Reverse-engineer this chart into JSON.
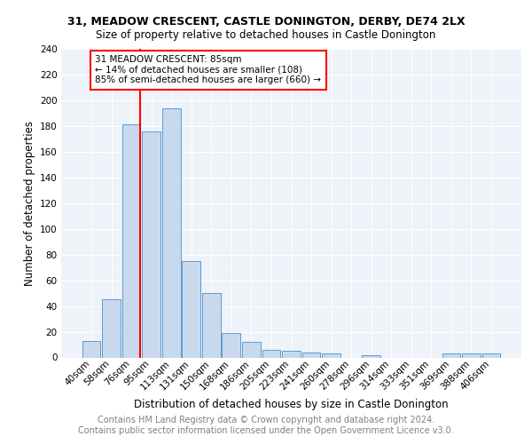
{
  "title1": "31, MEADOW CRESCENT, CASTLE DONINGTON, DERBY, DE74 2LX",
  "title2": "Size of property relative to detached houses in Castle Donington",
  "xlabel": "Distribution of detached houses by size in Castle Donington",
  "ylabel": "Number of detached properties",
  "footnote1": "Contains HM Land Registry data © Crown copyright and database right 2024.",
  "footnote2": "Contains public sector information licensed under the Open Government Licence v3.0.",
  "bar_labels": [
    "40sqm",
    "58sqm",
    "76sqm",
    "95sqm",
    "113sqm",
    "131sqm",
    "150sqm",
    "168sqm",
    "186sqm",
    "205sqm",
    "223sqm",
    "241sqm",
    "260sqm",
    "278sqm",
    "296sqm",
    "314sqm",
    "333sqm",
    "351sqm",
    "369sqm",
    "388sqm",
    "406sqm"
  ],
  "bar_values": [
    13,
    45,
    181,
    176,
    194,
    75,
    50,
    19,
    12,
    6,
    5,
    4,
    3,
    0,
    2,
    0,
    0,
    0,
    3,
    3,
    3
  ],
  "bar_color": "#c9d9ed",
  "bar_edge_color": "#5b9bd5",
  "annotation_text": "31 MEADOW CRESCENT: 85sqm\n← 14% of detached houses are smaller (108)\n85% of semi-detached houses are larger (660) →",
  "annotation_box_color": "white",
  "annotation_border_color": "red",
  "ylim": [
    0,
    240
  ],
  "yticks": [
    0,
    20,
    40,
    60,
    80,
    100,
    120,
    140,
    160,
    180,
    200,
    220,
    240
  ],
  "background_color": "#eef2f9",
  "grid_color": "white",
  "title1_fontsize": 9,
  "title2_fontsize": 8.5,
  "xlabel_fontsize": 8.5,
  "ylabel_fontsize": 8.5,
  "tick_fontsize": 7.5,
  "annotation_fontsize": 7.5,
  "footnote_fontsize": 7
}
